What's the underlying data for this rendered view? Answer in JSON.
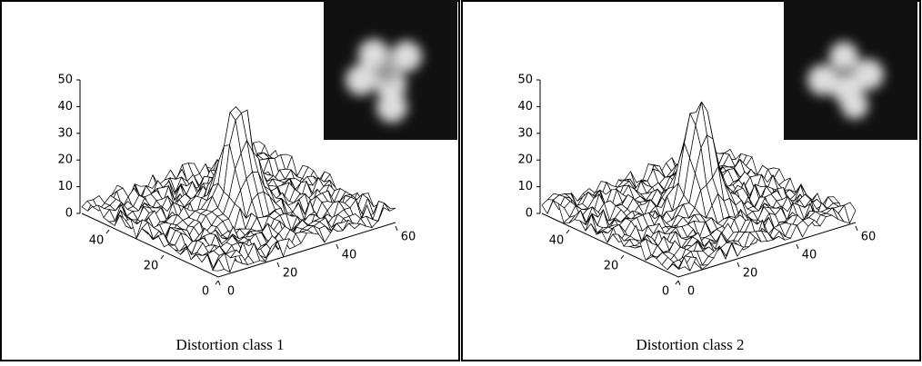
{
  "chart_data": [
    {
      "type": "surface",
      "title": "Distortion class 1",
      "xlim": [
        0,
        60
      ],
      "xticks": [
        0,
        20,
        40,
        60
      ],
      "ylim": [
        0,
        50
      ],
      "yticks": [
        0,
        20,
        40
      ],
      "zlim": [
        0,
        50
      ],
      "zticks": [
        0,
        10,
        20,
        30,
        40,
        50
      ],
      "peak": 40,
      "peak_x": 30,
      "peak_y": 25,
      "background_max": 10,
      "color": "#000000"
    },
    {
      "type": "surface",
      "title": "Distortion class 2",
      "xlim": [
        0,
        60
      ],
      "xticks": [
        0,
        20,
        40,
        60
      ],
      "ylim": [
        0,
        50
      ],
      "yticks": [
        0,
        20,
        40
      ],
      "zlim": [
        0,
        50
      ],
      "zticks": [
        0,
        10,
        20,
        30,
        40,
        50
      ],
      "peak": 40,
      "peak_x": 30,
      "peak_y": 25,
      "background_max": 10,
      "color": "#000000"
    }
  ]
}
